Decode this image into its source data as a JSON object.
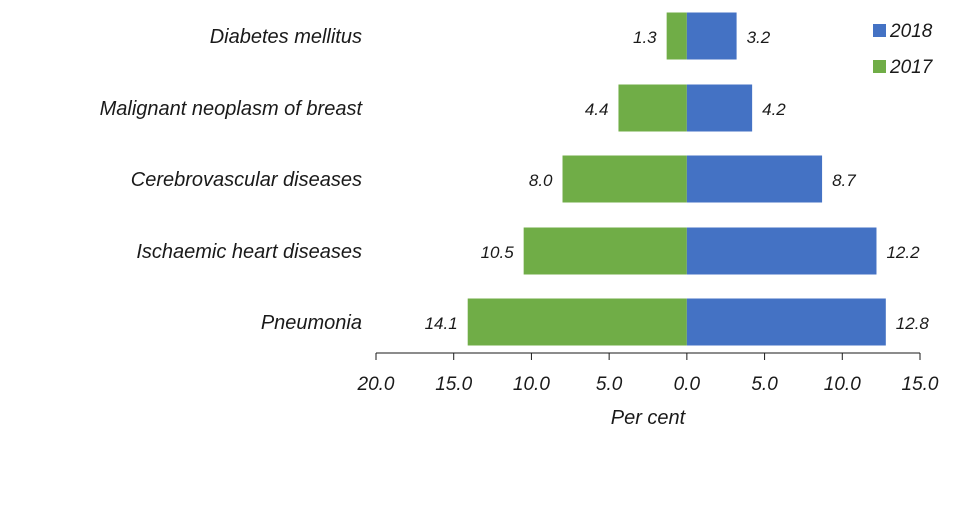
{
  "chart_data": {
    "type": "bar",
    "orientation": "horizontal-diverging",
    "categories": [
      "Diabetes mellitus",
      "Malignant neoplasm of breast",
      "Cerebrovascular diseases",
      "Ischaemic heart diseases",
      "Pneumonia"
    ],
    "series": [
      {
        "name": "2017",
        "side": "left",
        "color": "#70ad47",
        "values": [
          1.3,
          4.4,
          8.0,
          10.5,
          14.1
        ],
        "labels": [
          "1.3",
          "4.4",
          "8.0",
          "10.5",
          "14.1"
        ]
      },
      {
        "name": "2018",
        "side": "right",
        "color": "#4472c4",
        "values": [
          3.2,
          4.2,
          8.7,
          12.2,
          12.8
        ],
        "labels": [
          "3.2",
          "4.2",
          "8.7",
          "12.2",
          "12.8"
        ]
      }
    ],
    "xlim": [
      -20,
      15
    ],
    "ticks": [
      -20,
      -15,
      -10,
      -5,
      0,
      5,
      10,
      15
    ],
    "tick_labels": [
      "20.0",
      "15.0",
      "10.0",
      "5.0",
      "0.0",
      "5.0",
      "10.0",
      "15.0"
    ],
    "xlabel": "Per cent",
    "legend": {
      "position": "top-right",
      "entries": [
        "2018",
        "2017"
      ]
    }
  }
}
